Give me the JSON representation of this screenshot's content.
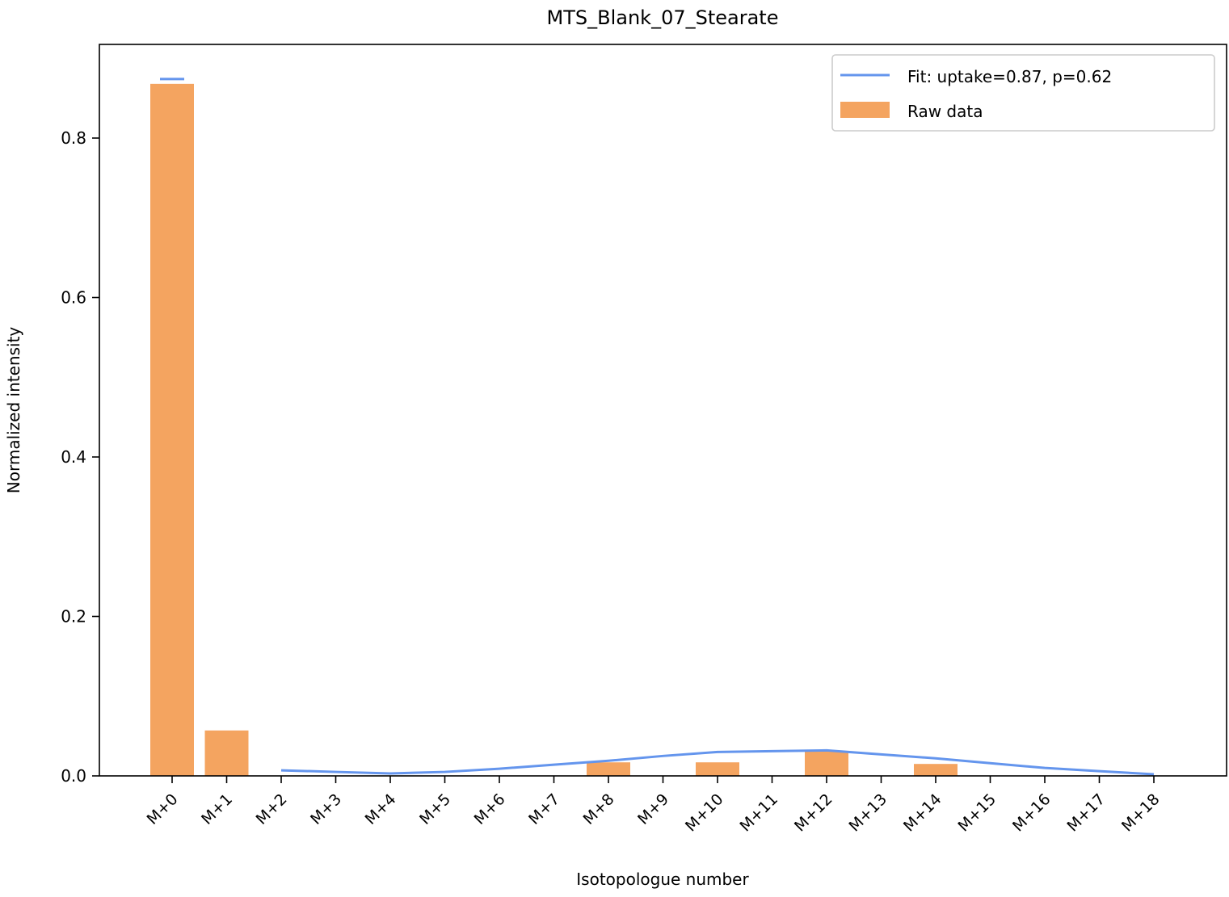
{
  "chart_data": {
    "type": "bar",
    "title": "MTS_Blank_07_Stearate",
    "xlabel": "Isotopologue number",
    "ylabel": "Normalized intensity",
    "ylim": [
      0,
      0.92
    ],
    "yticks": [
      "0.0",
      "0.2",
      "0.4",
      "0.6",
      "0.8"
    ],
    "ytick_values": [
      0.0,
      0.2,
      0.4,
      0.6,
      0.8
    ],
    "categories": [
      "M+0",
      "M+1",
      "M+2",
      "M+3",
      "M+4",
      "M+5",
      "M+6",
      "M+7",
      "M+8",
      "M+9",
      "M+10",
      "M+11",
      "M+12",
      "M+13",
      "M+14",
      "M+15",
      "M+16",
      "M+17",
      "M+18"
    ],
    "grid": false,
    "legend_position": "top-right",
    "series": [
      {
        "name": "Raw data",
        "kind": "bar",
        "color": "#f4a460",
        "values": [
          0.868,
          0.057,
          0.0,
          0.0,
          0.0,
          0.0,
          0.0,
          0.0,
          0.017,
          0.0,
          0.017,
          0.0,
          0.031,
          0.0,
          0.015,
          0.0,
          0.0,
          0.0,
          0.0
        ]
      },
      {
        "name": "Fit: uptake=0.87, p=0.62",
        "kind": "line",
        "color": "#6495ed",
        "values": [
          0.874,
          null,
          0.007,
          0.005,
          0.003,
          0.005,
          0.009,
          0.014,
          0.019,
          0.025,
          0.03,
          0.031,
          0.032,
          0.027,
          0.022,
          0.016,
          0.01,
          0.006,
          0.002
        ]
      }
    ]
  }
}
